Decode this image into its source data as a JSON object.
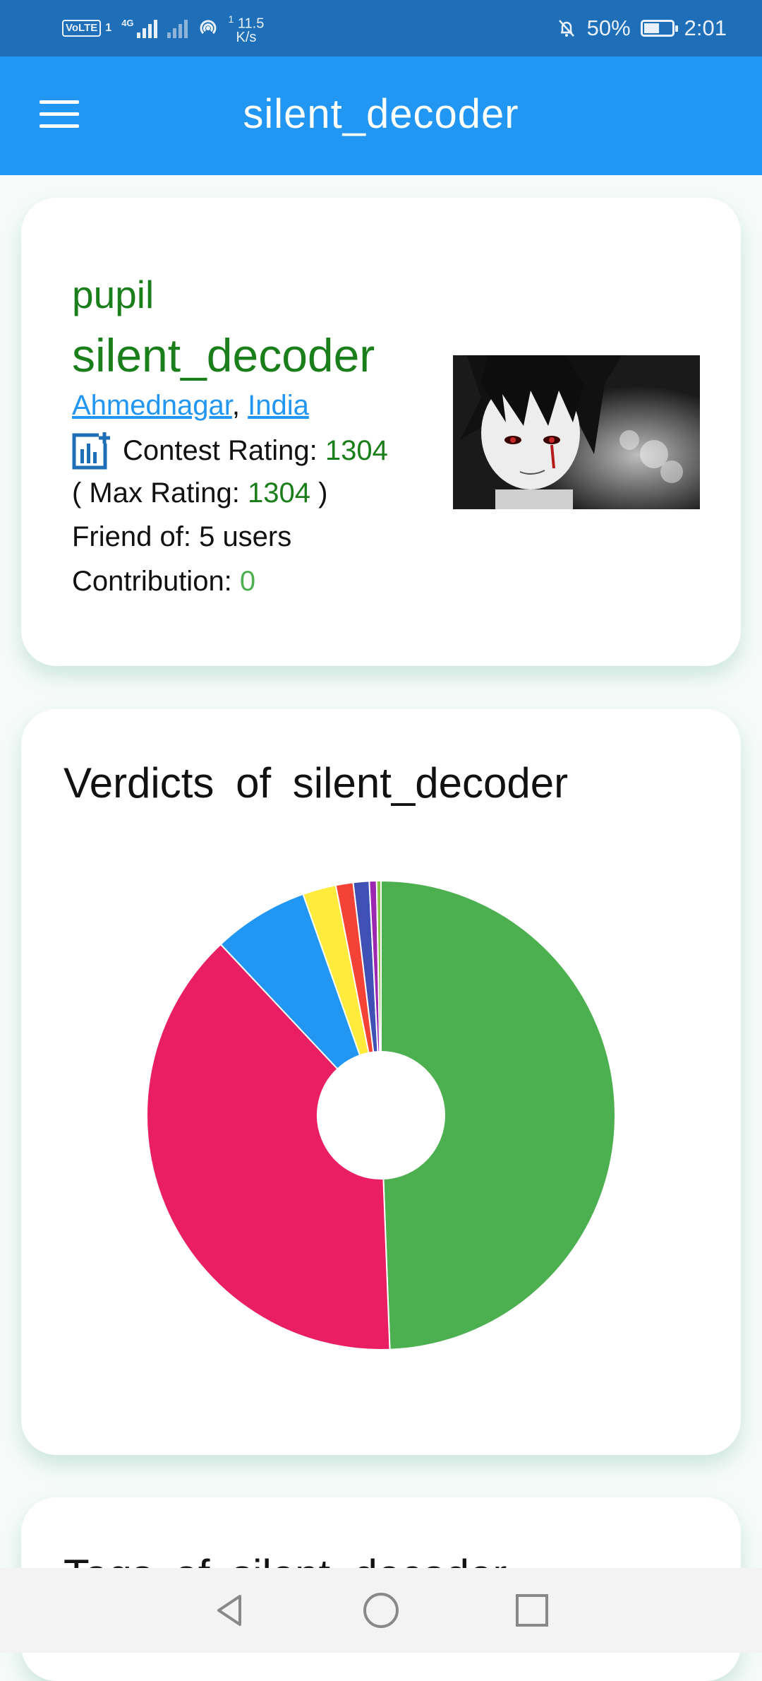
{
  "status_bar": {
    "volte": "VoLTE",
    "sim": "1",
    "network": "4G",
    "speed_value": "11.5",
    "speed_unit": "K/s",
    "speed_sup": "1",
    "battery": "50%",
    "time": "2:01"
  },
  "app_bar": {
    "title": "silent_decoder",
    "menu_icon": "hamburger-menu-icon"
  },
  "profile": {
    "rank": "pupil",
    "handle": "silent_decoder",
    "city": "Ahmednagar",
    "separator": ",",
    "country": "India",
    "rating_icon": "rating-chart-icon",
    "contest_rating_label": "Contest Rating:",
    "contest_rating": "1304",
    "max_rating_open": "( Max Rating:",
    "max_rating": "1304",
    "max_rating_close": ")",
    "friend_of": "Friend of: 5 users",
    "contribution_label": "Contribution:",
    "contribution": "0",
    "rank_color": "#1a7f1a",
    "link_color": "#2196f3"
  },
  "verdicts": {
    "title": "Verdicts of silent_decoder"
  },
  "chart_data": {
    "type": "pie",
    "donut": true,
    "title": "Verdicts of silent_decoder",
    "values": [
      49.4,
      38.6,
      6.6,
      2.3,
      1.2,
      1.1,
      0.5,
      0.3
    ],
    "colors": [
      "#4caf50",
      "#e91e63",
      "#2196f3",
      "#ffeb3b",
      "#f44336",
      "#3f51b5",
      "#9c27b0",
      "#8bc34a"
    ]
  },
  "tags": {
    "title": "Tags of silent_decoder"
  },
  "nav_bar": {
    "back_icon": "back-triangle-icon",
    "home_icon": "home-circle-icon",
    "recents_icon": "recents-square-icon"
  }
}
